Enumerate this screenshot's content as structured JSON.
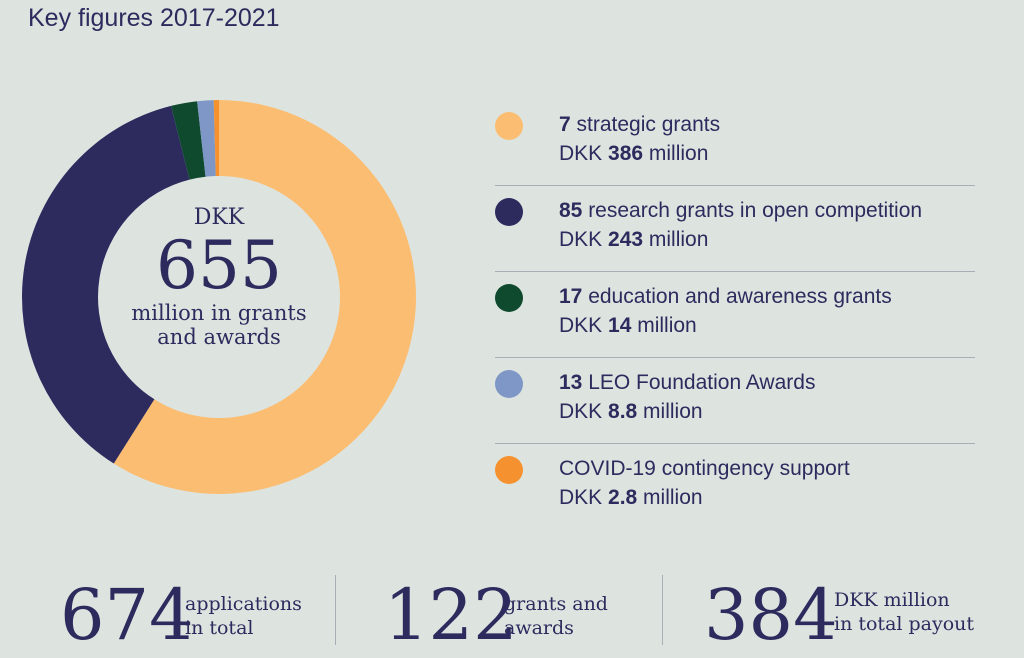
{
  "header": {
    "title": "Key figures 2017-2021"
  },
  "center": {
    "currency": "DKK",
    "value": "655",
    "line1": "million in grants",
    "line2": "and awards"
  },
  "chart_data": {
    "type": "pie",
    "categories": [
      "strategic grants",
      "research grants in open competition",
      "education and awareness grants",
      "LEO Foundation Awards",
      "COVID-19 contingency support"
    ],
    "values": [
      386,
      243,
      14,
      8.8,
      2.8
    ],
    "colors": [
      "#fbbd72",
      "#2d2a5e",
      "#0f4a2f",
      "#7f97c6",
      "#f5922f"
    ],
    "donut": true
  },
  "legend": [
    {
      "count": "7",
      "label": " strategic grants",
      "pre": "DKK ",
      "amount": "386",
      "post": " million",
      "color": "#fbbd72"
    },
    {
      "count": "85",
      "label": " research grants in open competition",
      "pre": "DKK ",
      "amount": "243",
      "post": " million",
      "color": "#2d2a5e"
    },
    {
      "count": "17",
      "label": " education and awareness grants",
      "pre": "DKK ",
      "amount": "14",
      "post": " million",
      "color": "#0f4a2f"
    },
    {
      "count": "13",
      "label": " LEO Foundation Awards",
      "pre": "DKK ",
      "amount": "8.8",
      "post": " million",
      "color": "#7f97c6"
    },
    {
      "count": "",
      "label": "COVID-19 contingency support",
      "pre": "DKK ",
      "amount": "2.8",
      "post": " million",
      "color": "#f5922f"
    }
  ],
  "stats": [
    {
      "value": "674",
      "line1": "applications",
      "line2": "in total"
    },
    {
      "value": "122",
      "line1": "grants and",
      "line2": "awards"
    },
    {
      "value": "384",
      "line1": "DKK million",
      "line2": "in total payout"
    }
  ]
}
